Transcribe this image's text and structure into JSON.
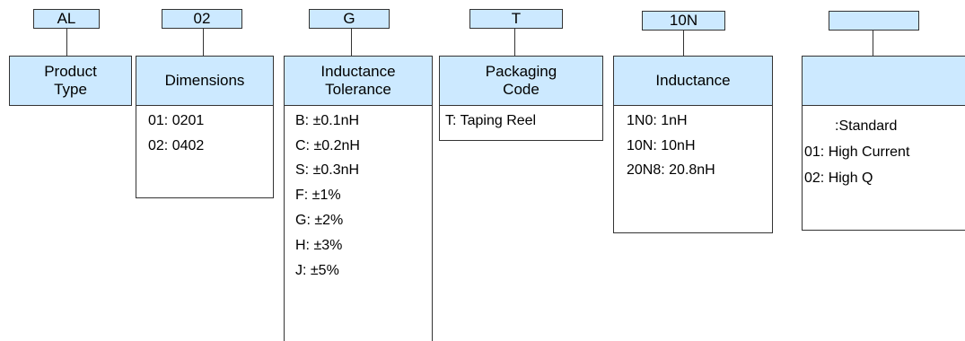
{
  "columns": [
    {
      "code": "AL",
      "title_lines": [
        "Product",
        "Type"
      ],
      "items": []
    },
    {
      "code": "02",
      "title_lines": [
        "Dimensions"
      ],
      "items": [
        "01: 0201",
        "02: 0402"
      ]
    },
    {
      "code": "G",
      "title_lines": [
        "Inductance",
        "Tolerance"
      ],
      "items": [
        "B: ±0.1nH",
        "C: ±0.2nH",
        "S: ±0.3nH",
        "F: ±1%",
        "G: ±2%",
        "H: ±3%",
        "J: ±5%"
      ]
    },
    {
      "code": "T",
      "title_lines": [
        "Packaging",
        "Code"
      ],
      "items": [
        "T: Taping Reel"
      ]
    },
    {
      "code": "10N",
      "title_lines": [
        "Inductance"
      ],
      "items": [
        "1N0: 1nH",
        "10N: 10nH",
        "20N8: 20.8nH"
      ]
    },
    {
      "code": "",
      "title_lines": [],
      "items": [
        ":Standard",
        "01: High Current",
        "02: High Q"
      ]
    }
  ]
}
